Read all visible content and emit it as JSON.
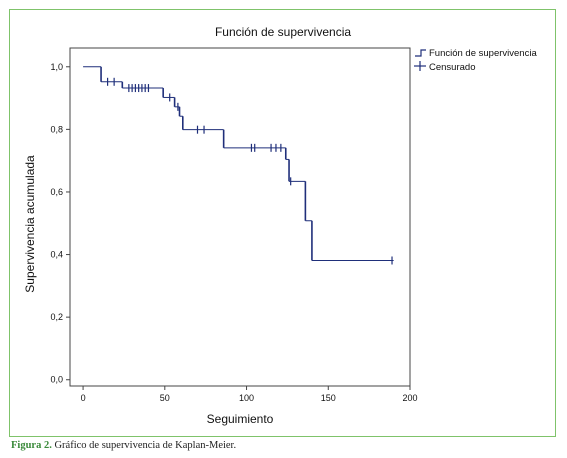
{
  "chart_data": {
    "type": "line",
    "title": "Función de supervivencia",
    "xlabel": "Seguimiento",
    "ylabel": "Supervivencia acumulada",
    "xlim": [
      -8,
      200
    ],
    "ylim": [
      -0.02,
      1.06
    ],
    "xticks": [
      0,
      50,
      100,
      150,
      200
    ],
    "yticks": [
      0.0,
      0.2,
      0.4,
      0.6,
      0.8,
      1.0
    ],
    "xtick_labels": [
      "0",
      "50",
      "100",
      "150",
      "200"
    ],
    "ytick_labels": [
      "0,0",
      "0,2",
      "0,4",
      "0,6",
      "0,8",
      "1,0"
    ],
    "grid": false,
    "legend_position": "top-right",
    "series": [
      {
        "name": "Función de supervivencia",
        "color": "#1f2f7a",
        "step_points": [
          [
            0,
            1.0
          ],
          [
            11,
            1.0
          ],
          [
            11,
            0.952
          ],
          [
            24,
            0.952
          ],
          [
            24,
            0.932
          ],
          [
            49,
            0.932
          ],
          [
            49,
            0.902
          ],
          [
            56,
            0.902
          ],
          [
            56,
            0.872
          ],
          [
            59,
            0.872
          ],
          [
            59,
            0.842
          ],
          [
            61,
            0.842
          ],
          [
            61,
            0.799
          ],
          [
            86,
            0.799
          ],
          [
            86,
            0.741
          ],
          [
            124,
            0.741
          ],
          [
            124,
            0.704
          ],
          [
            126,
            0.704
          ],
          [
            126,
            0.634
          ],
          [
            136,
            0.634
          ],
          [
            136,
            0.508
          ],
          [
            140,
            0.508
          ],
          [
            140,
            0.381
          ],
          [
            190,
            0.381
          ]
        ]
      },
      {
        "name": "Censurado",
        "color": "#1f2f7a",
        "censored_points": [
          [
            15,
            0.952
          ],
          [
            19,
            0.952
          ],
          [
            28,
            0.932
          ],
          [
            30,
            0.932
          ],
          [
            32,
            0.932
          ],
          [
            34,
            0.932
          ],
          [
            36,
            0.932
          ],
          [
            38,
            0.932
          ],
          [
            40,
            0.932
          ],
          [
            53,
            0.902
          ],
          [
            58,
            0.872
          ],
          [
            70,
            0.799
          ],
          [
            74,
            0.799
          ],
          [
            103,
            0.741
          ],
          [
            105,
            0.741
          ],
          [
            115,
            0.741
          ],
          [
            118,
            0.741
          ],
          [
            121,
            0.741
          ],
          [
            127,
            0.634
          ],
          [
            189,
            0.381
          ]
        ]
      }
    ]
  },
  "caption": {
    "label": "Figura 2.",
    "text": " Gráfico de supervivencia de Kaplan-Meier."
  }
}
